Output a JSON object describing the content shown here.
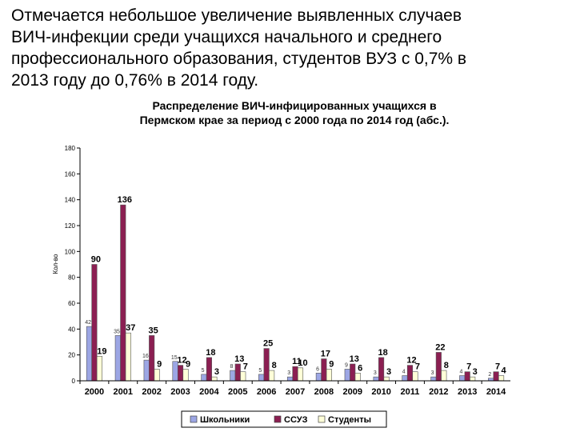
{
  "slide": {
    "heading_lines": [
      "Отмечается небольшое увеличение выявленных случаев",
      "ВИЧ-инфекции среди учащихся начального и среднего",
      "профессионального образования, студентов ВУЗ с 0,7% в",
      "2013 году до 0,76% в 2014 году."
    ]
  },
  "chart_data": {
    "type": "bar",
    "title_lines": [
      "Распределение ВИЧ-инфицированных учащихся в",
      "Пермском крае за период с 2000 года по 2014 год (абс.)."
    ],
    "ylabel": "Кол-во",
    "ylim": [
      0,
      180
    ],
    "yticks": [
      0,
      20,
      40,
      60,
      80,
      100,
      120,
      140,
      160,
      180
    ],
    "categories": [
      "2000",
      "2001",
      "2002",
      "2003",
      "2004",
      "2005",
      "2006",
      "2007",
      "2008",
      "2009",
      "2010",
      "2011",
      "2012",
      "2013",
      "2014"
    ],
    "series": [
      {
        "name": "Школьники",
        "color": "#9CA6E4",
        "values": [
          42,
          35,
          16,
          15,
          5,
          8,
          5,
          3,
          6,
          9,
          3,
          4,
          3,
          4,
          2
        ]
      },
      {
        "name": "ССУЗ",
        "color": "#8B1F52",
        "values": [
          90,
          136,
          35,
          12,
          18,
          13,
          25,
          11,
          17,
          13,
          18,
          12,
          22,
          7,
          7
        ]
      },
      {
        "name": "Студенты",
        "color": "#FFFFD8",
        "values": [
          19,
          37,
          9,
          9,
          3,
          7,
          8,
          10,
          9,
          6,
          3,
          7,
          8,
          3,
          4
        ]
      }
    ],
    "label_style": [
      "small",
      "big",
      "big"
    ],
    "legend_position": "bottom",
    "grid": false
  }
}
